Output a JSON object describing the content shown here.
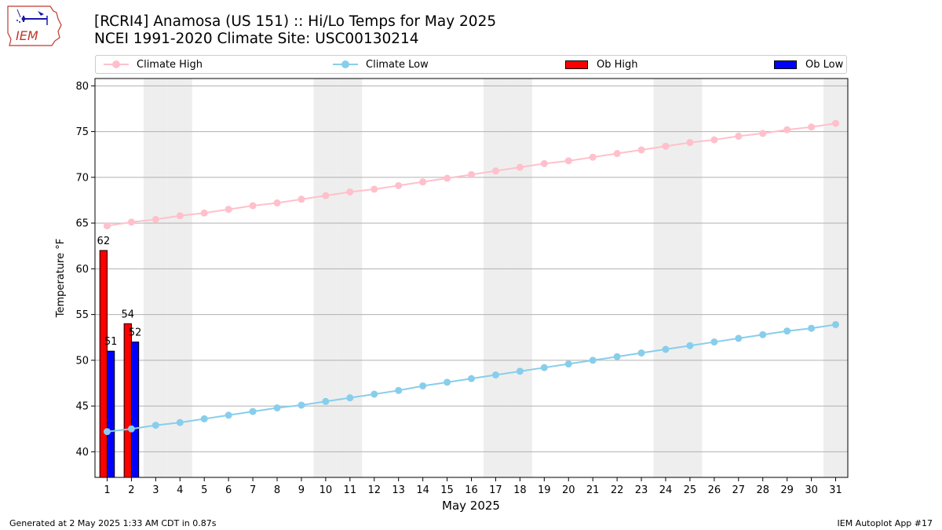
{
  "header": {
    "title_line1": "[RCRI4] Anamosa (US 151) :: Hi/Lo Temps for May 2025",
    "title_line2": "NCEI 1991-2020 Climate Site: USC00130214",
    "logo_text": "IEM"
  },
  "footer": {
    "generated": "Generated at 2 May 2025 1:33 AM CDT in 0.87s",
    "app": "IEM Autoplot App #17"
  },
  "legend": {
    "climate_high": "Climate High",
    "climate_low": "Climate Low",
    "ob_high": "Ob High",
    "ob_low": "Ob Low"
  },
  "chart_data": {
    "type": "bar",
    "xlabel": "May 2025",
    "ylabel": "Temperature °F",
    "xlim": [
      0.5,
      31.5
    ],
    "ylim": [
      37.2,
      80.8
    ],
    "yticks": [
      40,
      45,
      50,
      55,
      60,
      65,
      70,
      75,
      80
    ],
    "grid": "horizontal",
    "legend_position": "top",
    "weekend_days": [
      3,
      4,
      10,
      11,
      17,
      18,
      24,
      25,
      31
    ],
    "days": [
      1,
      2,
      3,
      4,
      5,
      6,
      7,
      8,
      9,
      10,
      11,
      12,
      13,
      14,
      15,
      16,
      17,
      18,
      19,
      20,
      21,
      22,
      23,
      24,
      25,
      26,
      27,
      28,
      29,
      30,
      31
    ],
    "series": [
      {
        "name": "Climate High",
        "kind": "line",
        "color": "#ffc0cb",
        "values": [
          64.7,
          65.1,
          65.4,
          65.8,
          66.1,
          66.5,
          66.9,
          67.2,
          67.6,
          68.0,
          68.4,
          68.7,
          69.1,
          69.5,
          69.9,
          70.3,
          70.7,
          71.1,
          71.5,
          71.8,
          72.2,
          72.6,
          73.0,
          73.4,
          73.8,
          74.1,
          74.5,
          74.8,
          75.2,
          75.5,
          75.9
        ]
      },
      {
        "name": "Climate Low",
        "kind": "line",
        "color": "#87ceeb",
        "values": [
          42.2,
          42.5,
          42.9,
          43.2,
          43.6,
          44.0,
          44.4,
          44.8,
          45.1,
          45.5,
          45.9,
          46.3,
          46.7,
          47.2,
          47.6,
          48.0,
          48.4,
          48.8,
          49.2,
          49.6,
          50.0,
          50.4,
          50.8,
          51.2,
          51.6,
          52.0,
          52.4,
          52.8,
          53.2,
          53.5,
          53.9
        ]
      },
      {
        "name": "Ob High",
        "kind": "bar",
        "color": "#ff0000",
        "days": [
          1,
          2
        ],
        "values": [
          62,
          54
        ]
      },
      {
        "name": "Ob Low",
        "kind": "bar",
        "color": "#0000ff",
        "days": [
          1,
          2
        ],
        "values": [
          51,
          52
        ]
      }
    ]
  }
}
